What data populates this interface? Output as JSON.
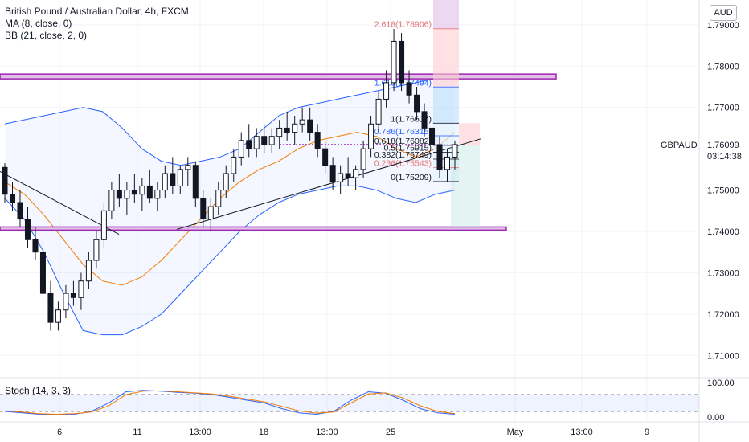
{
  "header": {
    "symbol_title": "British Pound / Australian Dollar, 4h, FXCM",
    "ma_label": "MA (8, close, 0)",
    "bb_label": "BB (21, close, 2, 0)",
    "currency_badge": "AUD"
  },
  "price_scale": {
    "ticks": [
      "1.79000",
      "1.78000",
      "1.77000",
      "1.76099",
      "1.75000",
      "1.74000",
      "1.73000",
      "1.72000",
      "1.71000"
    ],
    "current_symbol": "GBPAUD",
    "current_price": "1.76099",
    "countdown": "03:14:38"
  },
  "time_axis": {
    "labels": [
      "6",
      "11",
      "13:00",
      "18",
      "13:00",
      "25",
      "May",
      "13:00",
      "9"
    ]
  },
  "stoch": {
    "label": "Stoch (14, 3, 3)",
    "ticks": [
      "100.00",
      "0.00"
    ]
  },
  "fib_labels": [
    "2.618(1.78906)",
    "1.618(1.77494)",
    "1(1.76617)",
    "0.786(1.76315)",
    "0.618(1.76082)",
    "0.5(1.75915)",
    "0.382(1.75749)",
    "0.236(1.75543)",
    "0(1.75209)"
  ],
  "colors": {
    "bull": "#131722",
    "bear": "#131722",
    "band": "#2962ff",
    "ma": "#f57c00",
    "level": "#9c27b0",
    "stoch_k": "#2962ff",
    "stoch_d": "#f57c00"
  },
  "chart_data": {
    "type": "candlestick",
    "timeframe": "4h",
    "ylim": [
      1.705,
      1.796
    ],
    "horizontal_levels": [
      1.7775,
      1.7407
    ],
    "dotted_level": 1.761,
    "candles": [
      [
        1.7555,
        1.7565,
        1.747,
        1.749
      ],
      [
        1.749,
        1.752,
        1.745,
        1.747
      ],
      [
        1.747,
        1.75,
        1.741,
        1.743
      ],
      [
        1.743,
        1.746,
        1.736,
        1.738
      ],
      [
        1.738,
        1.741,
        1.733,
        1.735
      ],
      [
        1.735,
        1.738,
        1.723,
        1.725
      ],
      [
        1.725,
        1.728,
        1.716,
        1.718
      ],
      [
        1.718,
        1.723,
        1.716,
        1.721
      ],
      [
        1.721,
        1.727,
        1.719,
        1.725
      ],
      [
        1.725,
        1.728,
        1.722,
        1.724
      ],
      [
        1.724,
        1.73,
        1.721,
        1.728
      ],
      [
        1.728,
        1.735,
        1.726,
        1.733
      ],
      [
        1.733,
        1.74,
        1.731,
        1.738
      ],
      [
        1.738,
        1.747,
        1.736,
        1.745
      ],
      [
        1.745,
        1.752,
        1.743,
        1.75
      ],
      [
        1.75,
        1.754,
        1.746,
        1.748
      ],
      [
        1.748,
        1.752,
        1.744,
        1.75
      ],
      [
        1.75,
        1.754,
        1.747,
        1.749
      ],
      [
        1.749,
        1.753,
        1.745,
        1.751
      ],
      [
        1.751,
        1.755,
        1.747,
        1.748
      ],
      [
        1.748,
        1.752,
        1.745,
        1.75
      ],
      [
        1.75,
        1.756,
        1.748,
        1.754
      ],
      [
        1.754,
        1.758,
        1.749,
        1.751
      ],
      [
        1.751,
        1.756,
        1.749,
        1.755
      ],
      [
        1.755,
        1.758,
        1.751,
        1.756
      ],
      [
        1.756,
        1.757,
        1.746,
        1.748
      ],
      [
        1.748,
        1.75,
        1.741,
        1.743
      ],
      [
        1.743,
        1.748,
        1.74,
        1.746
      ],
      [
        1.746,
        1.752,
        1.744,
        1.75
      ],
      [
        1.75,
        1.756,
        1.748,
        1.754
      ],
      [
        1.754,
        1.76,
        1.752,
        1.758
      ],
      [
        1.758,
        1.764,
        1.756,
        1.762
      ],
      [
        1.762,
        1.766,
        1.758,
        1.76
      ],
      [
        1.76,
        1.765,
        1.758,
        1.763
      ],
      [
        1.763,
        1.766,
        1.759,
        1.761
      ],
      [
        1.761,
        1.765,
        1.759,
        1.763
      ],
      [
        1.763,
        1.767,
        1.76,
        1.765
      ],
      [
        1.765,
        1.769,
        1.762,
        1.764
      ],
      [
        1.764,
        1.768,
        1.761,
        1.766
      ],
      [
        1.766,
        1.77,
        1.764,
        1.767
      ],
      [
        1.767,
        1.77,
        1.762,
        1.764
      ],
      [
        1.764,
        1.766,
        1.758,
        1.76
      ],
      [
        1.76,
        1.762,
        1.754,
        1.756
      ],
      [
        1.756,
        1.758,
        1.75,
        1.752
      ],
      [
        1.752,
        1.756,
        1.749,
        1.754
      ],
      [
        1.754,
        1.758,
        1.751,
        1.753
      ],
      [
        1.753,
        1.756,
        1.75,
        1.755
      ],
      [
        1.755,
        1.762,
        1.753,
        1.76
      ],
      [
        1.76,
        1.768,
        1.758,
        1.766
      ],
      [
        1.766,
        1.774,
        1.764,
        1.772
      ],
      [
        1.772,
        1.779,
        1.77,
        1.776
      ],
      [
        1.776,
        1.789,
        1.774,
        1.786
      ],
      [
        1.786,
        1.788,
        1.774,
        1.776
      ],
      [
        1.776,
        1.779,
        1.771,
        1.773
      ],
      [
        1.773,
        1.775,
        1.767,
        1.769
      ],
      [
        1.769,
        1.771,
        1.763,
        1.765
      ],
      [
        1.765,
        1.767,
        1.759,
        1.761
      ],
      [
        1.761,
        1.763,
        1.753,
        1.755
      ],
      [
        1.755,
        1.76,
        1.752,
        1.758
      ],
      [
        1.758,
        1.762,
        1.755,
        1.761
      ]
    ],
    "upper_band": [
      1.766,
      1.767,
      1.768,
      1.769,
      1.77,
      1.769,
      1.765,
      1.76,
      1.757,
      1.756,
      1.757,
      1.758,
      1.76,
      1.764,
      1.768,
      1.77,
      1.771,
      1.772,
      1.773,
      1.774,
      1.775,
      1.776,
      1.777,
      1.7775
    ],
    "lower_band": [
      1.748,
      1.743,
      1.735,
      1.725,
      1.716,
      1.715,
      1.715,
      1.717,
      1.72,
      1.725,
      1.73,
      1.735,
      1.74,
      1.744,
      1.747,
      1.749,
      1.75,
      1.751,
      1.751,
      1.75,
      1.748,
      1.747,
      1.749,
      1.75
    ],
    "ma": [
      1.752,
      1.749,
      1.744,
      1.738,
      1.732,
      1.728,
      1.727,
      1.729,
      1.733,
      1.738,
      1.743,
      1.748,
      1.752,
      1.755,
      1.757,
      1.76,
      1.762,
      1.763,
      1.764,
      1.763,
      1.76,
      1.758,
      1.76,
      1.764
    ],
    "stoch_k": [
      20,
      15,
      10,
      8,
      10,
      20,
      50,
      90,
      95,
      92,
      88,
      85,
      80,
      70,
      60,
      50,
      30,
      15,
      10,
      20,
      60,
      90,
      85,
      60,
      30,
      15,
      10
    ],
    "stoch_d": [
      22,
      18,
      12,
      10,
      12,
      18,
      40,
      80,
      92,
      93,
      90,
      86,
      82,
      74,
      64,
      54,
      38,
      22,
      14,
      18,
      50,
      82,
      86,
      68,
      40,
      20,
      12
    ]
  }
}
